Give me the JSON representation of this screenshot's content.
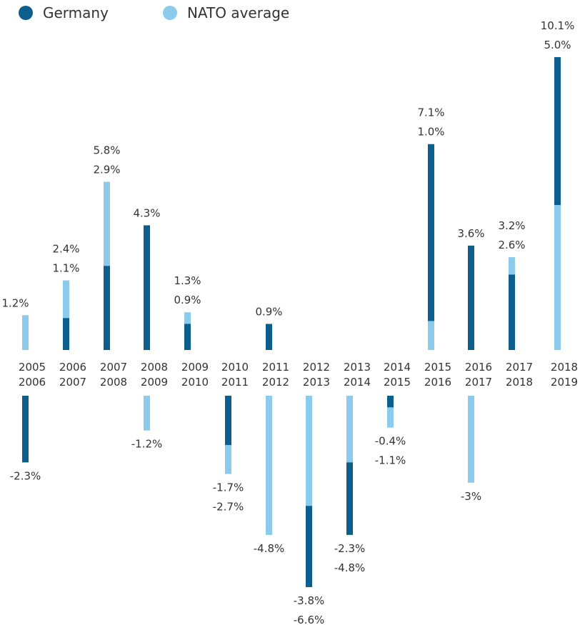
{
  "legend": {
    "germany_label": "Germany",
    "nato_label": "NATO average"
  },
  "colors": {
    "germany": "#0c5f8c",
    "nato": "#8dcbec",
    "text": "#333333"
  },
  "chart_data": {
    "type": "bar",
    "series": [
      {
        "name": "Germany",
        "values": [
          -2.3,
          1.1,
          2.9,
          4.3,
          0.9,
          -1.7,
          0.9,
          -6.6,
          -4.8,
          -0.4,
          7.1,
          3.6,
          2.6,
          10.1
        ]
      },
      {
        "name": "NATO average",
        "values": [
          1.2,
          2.4,
          5.8,
          -1.2,
          1.3,
          -2.7,
          -4.8,
          -3.8,
          -2.3,
          -1.1,
          1.0,
          -3.0,
          3.2,
          5.0
        ]
      }
    ],
    "categories": [
      [
        "2005",
        "2006"
      ],
      [
        "2006",
        "2007"
      ],
      [
        "2007",
        "2008"
      ],
      [
        "2008",
        "2009"
      ],
      [
        "2009",
        "2010"
      ],
      [
        "2010",
        "2011"
      ],
      [
        "2011",
        "2012"
      ],
      [
        "2012",
        "2013"
      ],
      [
        "2013",
        "2014"
      ],
      [
        "2014",
        "2015"
      ],
      [
        "2015",
        "2016"
      ],
      [
        "2016",
        "2017"
      ],
      [
        "2017",
        "2018"
      ],
      [
        "2018",
        "2019"
      ]
    ],
    "labels": [
      [
        "-2.3%"
      ],
      [
        "2.4%",
        "1.1%"
      ],
      [
        "5.8%",
        "2.9%"
      ],
      [
        "4.3%"
      ],
      [
        "1.3%",
        "0.9%"
      ],
      [
        "-1.7%",
        "-2.7%"
      ],
      [
        "0.9%"
      ],
      [
        "-3.8%",
        "-6.6%"
      ],
      [
        "-2.3%",
        "-4.8%"
      ],
      [
        "-0.4%",
        "-1.1%"
      ],
      [
        "7.1%",
        "1.0%"
      ],
      [
        "3.6%"
      ],
      [
        "3.2%",
        "2.6%"
      ],
      [
        "10.1%",
        "5.0%"
      ]
    ],
    "extra_labels": [
      {
        "index": 0,
        "text": "1.2%"
      },
      {
        "index": 3,
        "text": "-1.2%"
      },
      {
        "index": 6,
        "text": "-4.8%"
      },
      {
        "index": 11,
        "text": "-3%"
      }
    ],
    "legend_position": "top-left",
    "grid": false
  }
}
